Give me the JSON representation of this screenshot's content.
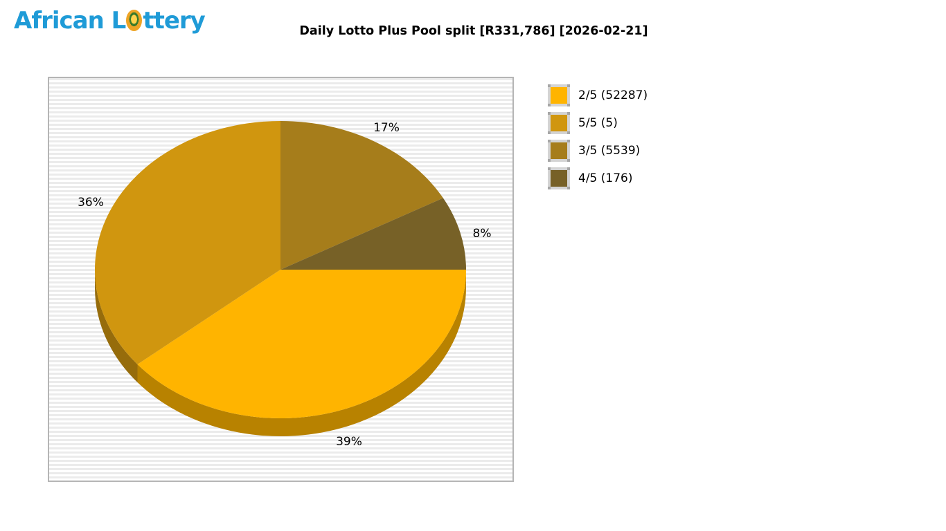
{
  "logo": {
    "prefix": "African L",
    "suffix": "ttery",
    "ball_icon": "lottery-ball-icon",
    "color": "#1F9BD7"
  },
  "chart_data": {
    "type": "pie",
    "style": "3d-pie",
    "title": "Daily Lotto Plus Pool split [R331,786] [2026-02-21]",
    "pool_total": "R331,786",
    "draw_date": "2026-02-21",
    "start_angle_deg": 0,
    "direction": "clockwise-from-east",
    "legend_position": "right",
    "background_stripes": true,
    "slices": [
      {
        "label": "2/5",
        "count": 52287,
        "percent": 39,
        "pct_label": "39%",
        "color": "#FFB400"
      },
      {
        "label": "5/5",
        "count": 5,
        "percent": 36,
        "pct_label": "36%",
        "color": "#D0960F"
      },
      {
        "label": "3/5",
        "count": 5539,
        "percent": 17,
        "pct_label": "17%",
        "color": "#A67D1B"
      },
      {
        "label": "4/5",
        "count": 176,
        "percent": 8,
        "pct_label": "8%",
        "color": "#776127"
      }
    ]
  },
  "legend": {
    "items": [
      {
        "label": "2/5 (52287)"
      },
      {
        "label": "5/5 (5)"
      },
      {
        "label": "3/5 (5539)"
      },
      {
        "label": "4/5 (176)"
      }
    ]
  }
}
